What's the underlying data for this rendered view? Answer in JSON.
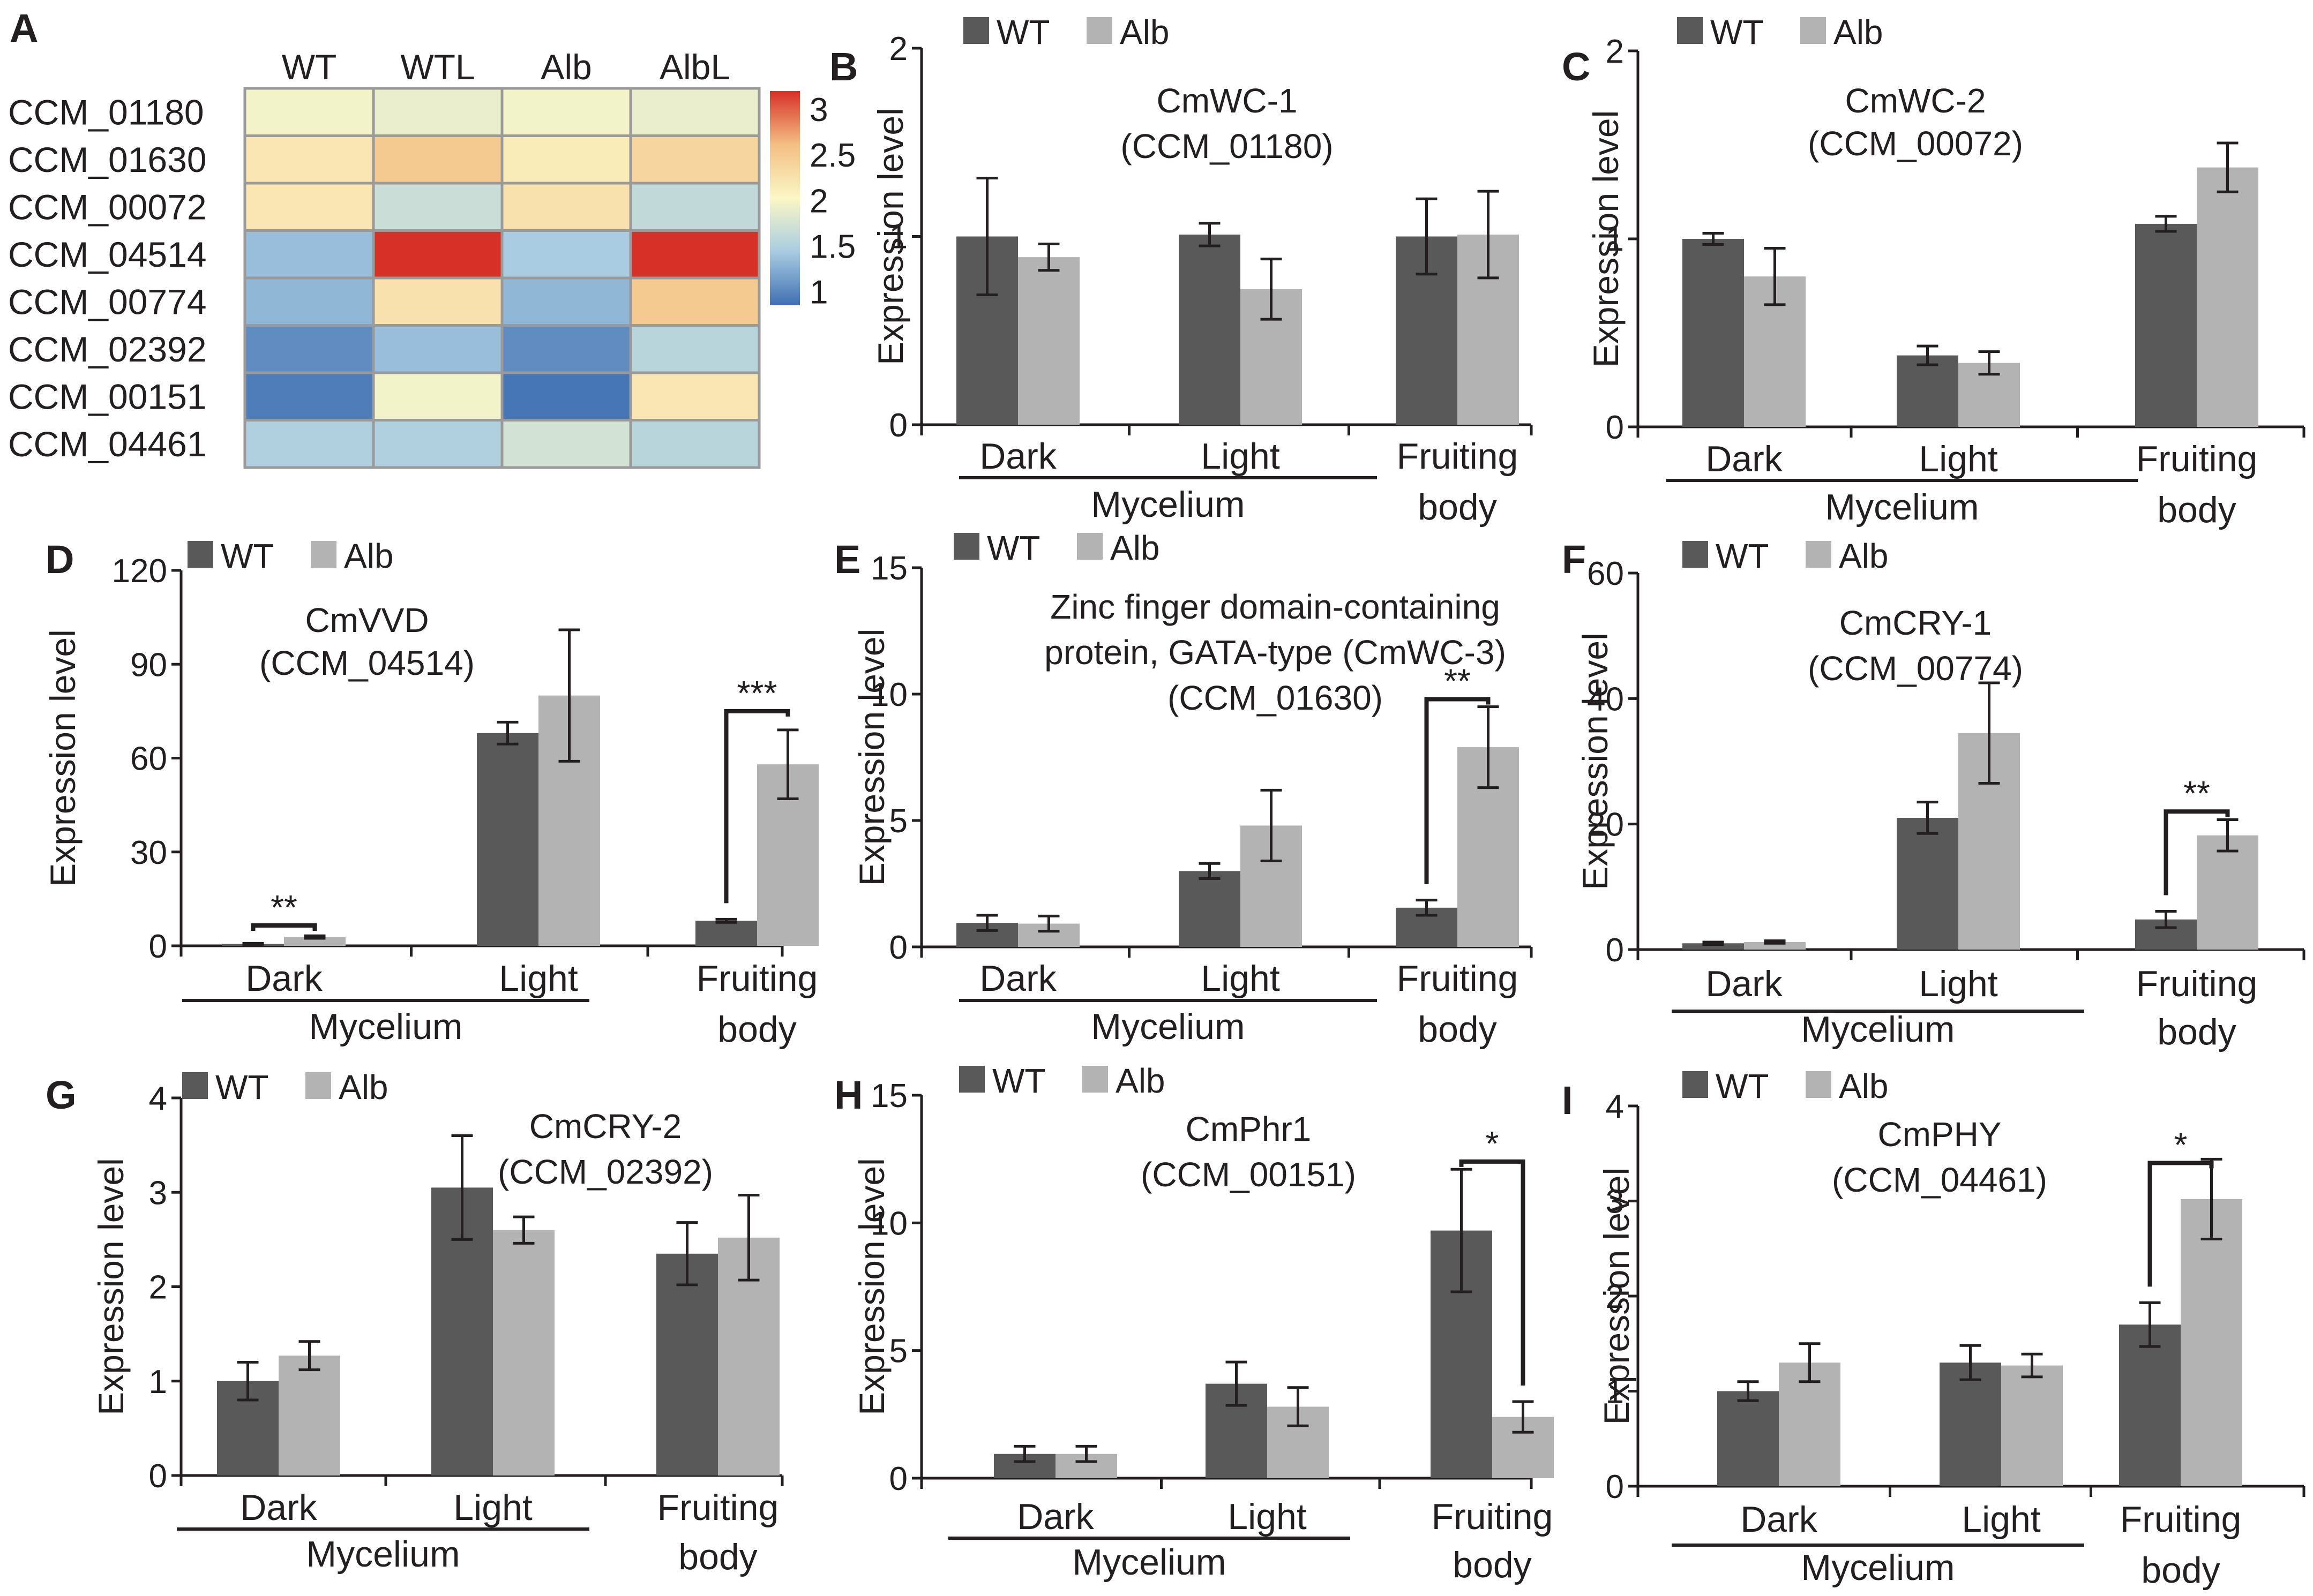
{
  "colors": {
    "WT": "#595959",
    "Alb": "#b3b3b3"
  },
  "heatmap": {
    "letter": "A",
    "columns": [
      "WT",
      "WTL",
      "Alb",
      "AlbL"
    ],
    "rows": [
      "CCM_01180",
      "CCM_01630",
      "CCM_00072",
      "CCM_04514",
      "CCM_00774",
      "CCM_02392",
      "CCM_00151",
      "CCM_04461"
    ],
    "values": [
      [
        1.95,
        1.9,
        1.95,
        1.9
      ],
      [
        2.15,
        2.4,
        2.1,
        2.3
      ],
      [
        2.15,
        1.7,
        2.2,
        1.65
      ],
      [
        1.4,
        3.2,
        1.5,
        3.2
      ],
      [
        1.35,
        2.2,
        1.35,
        2.4
      ],
      [
        1.05,
        1.4,
        1.05,
        1.6
      ],
      [
        0.95,
        1.95,
        0.9,
        2.15
      ],
      [
        1.55,
        1.55,
        1.75,
        1.6
      ]
    ],
    "colorbar": {
      "ticks": [
        "3",
        "2.5",
        "2",
        "1.5",
        "1"
      ],
      "min": 0.85,
      "max": 3.2
    }
  },
  "chart_data": [
    {
      "type": "bar",
      "letter": "B",
      "title_lines": [
        "CmWC-1",
        "(CCM_01180)"
      ],
      "ylabel": "Expression level",
      "ylim": [
        0,
        2
      ],
      "yticks": [
        "0",
        "1",
        "2"
      ],
      "legend": [
        "WT",
        "Alb"
      ],
      "categories": [
        "Dark",
        "Light",
        "Fruiting"
      ],
      "category_sublabel": "body",
      "group_label": "Mycelium",
      "series": [
        {
          "name": "WT",
          "values": [
            1.0,
            1.01,
            1.0
          ],
          "errors": [
            0.31,
            0.06,
            0.2
          ]
        },
        {
          "name": "Alb",
          "values": [
            0.89,
            0.72,
            1.01
          ],
          "errors": [
            0.07,
            0.16,
            0.23
          ]
        }
      ],
      "significance": []
    },
    {
      "type": "bar",
      "letter": "C",
      "title_lines": [
        "CmWC-2",
        "(CCM_00072)"
      ],
      "ylabel": "Expression level",
      "ylim": [
        0,
        2
      ],
      "yticks": [
        "0",
        "1",
        "2"
      ],
      "legend": [
        "WT",
        "Alb"
      ],
      "categories": [
        "Dark",
        "Light",
        "Fruiting"
      ],
      "category_sublabel": "body",
      "group_label": "Mycelium",
      "series": [
        {
          "name": "WT",
          "values": [
            1.0,
            0.38,
            1.08
          ],
          "errors": [
            0.03,
            0.05,
            0.04
          ]
        },
        {
          "name": "Alb",
          "values": [
            0.8,
            0.34,
            1.38
          ],
          "errors": [
            0.15,
            0.06,
            0.13
          ]
        }
      ],
      "significance": []
    },
    {
      "type": "bar",
      "letter": "D",
      "title_lines": [
        "CmVVD",
        "(CCM_04514)"
      ],
      "ylabel": "Expression level",
      "ylim": [
        0,
        120
      ],
      "yticks": [
        "0",
        "30",
        "60",
        "90",
        "120"
      ],
      "legend": [
        "WT",
        "Alb"
      ],
      "categories": [
        "Dark",
        "Light",
        "Fruiting"
      ],
      "category_sublabel": "body",
      "group_label": "Mycelium",
      "series": [
        {
          "name": "WT",
          "values": [
            0.6,
            68,
            8
          ],
          "errors": [
            0.2,
            3.5,
            0.5
          ]
        },
        {
          "name": "Alb",
          "values": [
            2.8,
            80,
            58
          ],
          "errors": [
            0.4,
            21,
            11
          ]
        }
      ],
      "significance": [
        {
          "category": 0,
          "label": "**",
          "bracket_value": 6.5
        },
        {
          "category": 2,
          "label": "***",
          "bracket_value": 75
        }
      ]
    },
    {
      "type": "bar",
      "letter": "E",
      "title_lines": [
        "Zinc finger domain-containing",
        "protein, GATA-type (CmWC-3)",
        "(CCM_01630)"
      ],
      "ylabel": "Expression level",
      "ylim": [
        0,
        15
      ],
      "yticks": [
        "0",
        "5",
        "10",
        "15"
      ],
      "legend": [
        "WT",
        "Alb"
      ],
      "categories": [
        "Dark",
        "Light",
        "Fruiting"
      ],
      "category_sublabel": "body",
      "group_label": "Mycelium",
      "series": [
        {
          "name": "WT",
          "values": [
            0.95,
            3.0,
            1.55
          ],
          "errors": [
            0.3,
            0.3,
            0.3
          ]
        },
        {
          "name": "Alb",
          "values": [
            0.92,
            4.8,
            7.9
          ],
          "errors": [
            0.3,
            1.4,
            1.6
          ]
        }
      ],
      "significance": [
        {
          "category": 2,
          "label": "**",
          "bracket_value": 9.8
        }
      ]
    },
    {
      "type": "bar",
      "letter": "F",
      "title_lines": [
        "CmCRY-1",
        "(CCM_00774)"
      ],
      "ylabel": "Expression level",
      "ylim": [
        0,
        60
      ],
      "yticks": [
        "0",
        "20",
        "40",
        "60"
      ],
      "legend": [
        "WT",
        "Alb"
      ],
      "categories": [
        "Dark",
        "Light",
        "Fruiting"
      ],
      "category_sublabel": "body",
      "group_label": "Mycelium",
      "series": [
        {
          "name": "WT",
          "values": [
            1.0,
            21,
            4.8
          ],
          "errors": [
            0.2,
            2.5,
            1.3
          ]
        },
        {
          "name": "Alb",
          "values": [
            1.2,
            34.5,
            18.2
          ],
          "errors": [
            0.2,
            8,
            2.5
          ]
        }
      ],
      "significance": [
        {
          "category": 2,
          "label": "**",
          "bracket_value": 22
        }
      ]
    },
    {
      "type": "bar",
      "letter": "G",
      "title_lines": [
        "CmCRY-2",
        "(CCM_02392)"
      ],
      "ylabel": "Expression level",
      "ylim": [
        0,
        4
      ],
      "yticks": [
        "0",
        "1",
        "2",
        "3",
        "4"
      ],
      "legend": [
        "WT",
        "Alb"
      ],
      "categories": [
        "Dark",
        "Light",
        "Fruiting"
      ],
      "category_sublabel": "body",
      "group_label": "Mycelium",
      "series": [
        {
          "name": "WT",
          "values": [
            1.0,
            3.05,
            2.35
          ],
          "errors": [
            0.2,
            0.55,
            0.33
          ]
        },
        {
          "name": "Alb",
          "values": [
            1.27,
            2.6,
            2.52
          ],
          "errors": [
            0.15,
            0.14,
            0.45
          ]
        }
      ],
      "significance": []
    },
    {
      "type": "bar",
      "letter": "H",
      "title_lines": [
        "CmPhr1",
        "(CCM_00151)"
      ],
      "ylabel": "Expression level",
      "ylim": [
        0,
        15
      ],
      "yticks": [
        "0",
        "5",
        "10",
        "15"
      ],
      "legend": [
        "WT",
        "Alb"
      ],
      "categories": [
        "Dark",
        "Light",
        "Fruiting"
      ],
      "category_sublabel": "body",
      "group_label": "Mycelium",
      "series": [
        {
          "name": "WT",
          "values": [
            0.95,
            3.7,
            9.7
          ],
          "errors": [
            0.3,
            0.85,
            2.4
          ]
        },
        {
          "name": "Alb",
          "values": [
            0.95,
            2.8,
            2.4
          ],
          "errors": [
            0.3,
            0.75,
            0.6
          ]
        }
      ],
      "significance": [
        {
          "category": 2,
          "label": "*",
          "bracket_value": 12.4
        }
      ]
    },
    {
      "type": "bar",
      "letter": "I",
      "title_lines": [
        "CmPHY",
        "(CCM_04461)"
      ],
      "ylabel": "Expression level",
      "ylim": [
        0,
        4
      ],
      "yticks": [
        "0",
        "1",
        "2",
        "3",
        "4"
      ],
      "legend": [
        "WT",
        "Alb"
      ],
      "categories": [
        "Dark",
        "Light",
        "Fruiting"
      ],
      "category_sublabel": "body",
      "group_label": "Mycelium",
      "series": [
        {
          "name": "WT",
          "values": [
            1.0,
            1.3,
            1.7
          ],
          "errors": [
            0.1,
            0.18,
            0.23
          ]
        },
        {
          "name": "Alb",
          "values": [
            1.3,
            1.27,
            3.02
          ],
          "errors": [
            0.2,
            0.12,
            0.42
          ]
        }
      ],
      "significance": [
        {
          "category": 2,
          "label": "*",
          "bracket_value": 3.4
        }
      ]
    }
  ]
}
